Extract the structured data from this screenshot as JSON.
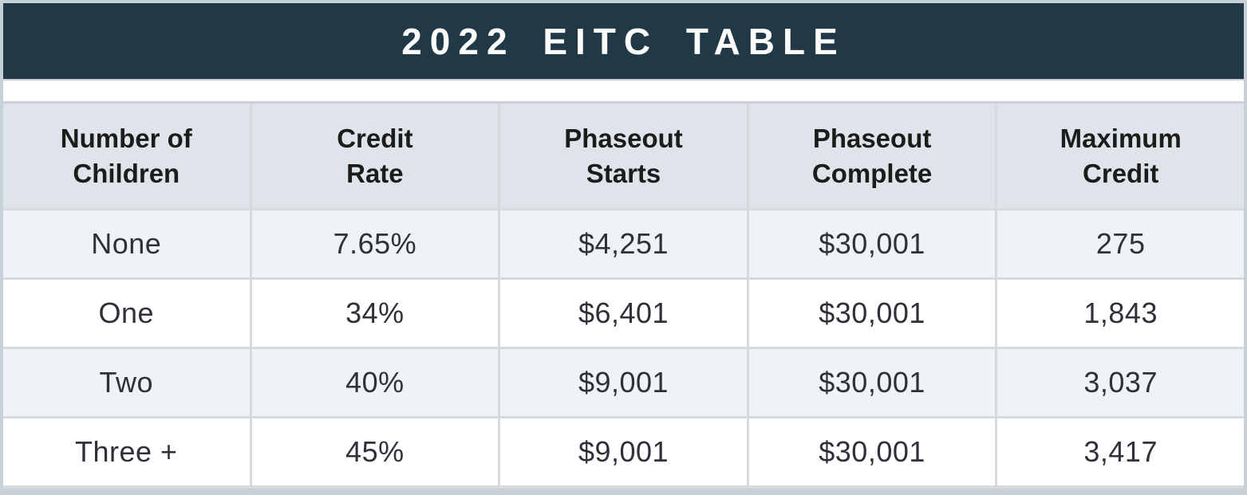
{
  "title": "2022 EITC TABLE",
  "colors": {
    "title_bar_bg": "#213947",
    "title_text": "#fcfcfc",
    "outer_border": "#c9d1d8",
    "divider": "#d4dade",
    "header_row_bg": "#dee4ea",
    "odd_row_bg": "#eff2f6",
    "even_row_bg": "#ffffff",
    "header_text": "#1c1c1a",
    "data_text": "#2e3138"
  },
  "table": {
    "headers": [
      "Number of\nChildren",
      "Credit\nRate",
      "Phaseout\nStarts",
      "Phaseout\nComplete",
      "Maximum\nCredit"
    ],
    "rows": [
      {
        "cells": [
          "None",
          "7.65%",
          "$4,251",
          "$30,001",
          "275"
        ]
      },
      {
        "cells": [
          "One",
          "34%",
          "$6,401",
          "$30,001",
          "1,843"
        ]
      },
      {
        "cells": [
          "Two",
          "40%",
          "$9,001",
          "$30,001",
          "3,037"
        ]
      },
      {
        "cells": [
          "Three +",
          "45%",
          "$9,001",
          "$30,001",
          "3,417"
        ]
      }
    ]
  },
  "chart_data": {
    "type": "table",
    "title": "2022 EITC TABLE",
    "categories": [
      "None",
      "One",
      "Two",
      "Three +"
    ],
    "series": [
      {
        "name": "Credit Rate",
        "values": [
          "7.65%",
          "34%",
          "40%",
          "45%"
        ]
      },
      {
        "name": "Phaseout Starts",
        "values": [
          4251,
          6401,
          9001,
          9001
        ]
      },
      {
        "name": "Phaseout Complete",
        "values": [
          30001,
          30001,
          30001,
          30001
        ]
      },
      {
        "name": "Maximum Credit",
        "values": [
          275,
          1843,
          3037,
          3417
        ]
      }
    ]
  }
}
